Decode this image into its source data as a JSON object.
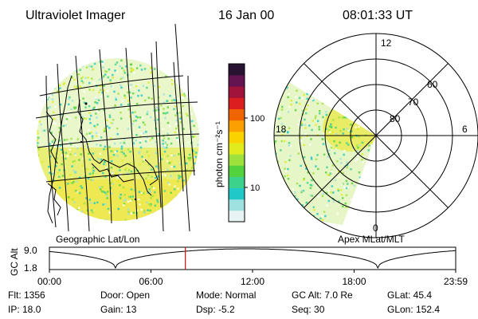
{
  "header": {
    "title": "Ultraviolet Imager",
    "date": "16 Jan 00",
    "time": "08:01:33 UT"
  },
  "left_panel": {
    "label": "Geographic Lat/Lon"
  },
  "right_panel": {
    "label": "Apex MLat/MLT",
    "mlt_labels": {
      "top": "12",
      "left": "18",
      "right": "6",
      "bottom": "0"
    },
    "lat_labels": [
      "60",
      "70",
      "80"
    ]
  },
  "colorbar": {
    "unit": "photon cm⁻²s⁻¹",
    "ticks": [
      "100",
      "10"
    ],
    "colors": [
      "#e8f4f4",
      "#9fe0e0",
      "#20c8c8",
      "#3cd28c",
      "#52d23c",
      "#9ee13c",
      "#e1eb1e",
      "#fad200",
      "#faa000",
      "#f06400",
      "#dc1e1e",
      "#a0143c",
      "#641450",
      "#281432"
    ]
  },
  "altitude_plot": {
    "ylabel": "GC Alt",
    "y_ticks": [
      "9.0",
      "1.8"
    ],
    "x_ticks": [
      "00:00",
      "06:00",
      "12:00",
      "18:00",
      "23:59"
    ],
    "current_time_hours": 8.03,
    "marker_color": "#d01010"
  },
  "status": {
    "flt": "Flt: 1356",
    "door": "Door: Open",
    "mode": "Mode: Normal",
    "gc_alt": "GC Alt: 7.0 Re",
    "glat": "GLat:  45.4",
    "ip": "IP: 18.0",
    "gain": "Gain: 13",
    "dsp": "Dsp:    -5.2",
    "seq": "Seq: 30",
    "glon": "GLon: 152.4"
  }
}
